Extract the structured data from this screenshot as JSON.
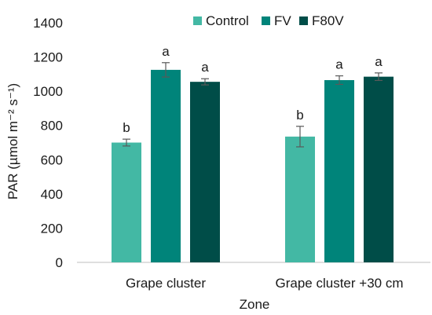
{
  "chart_data": {
    "type": "bar",
    "ylabel": "PAR (µmol m⁻² s⁻¹)",
    "xlabel": "Zone",
    "ylim": [
      0,
      1400
    ],
    "yticks": [
      0,
      200,
      400,
      600,
      800,
      1000,
      1200,
      1400
    ],
    "grid": false,
    "legend_position": "top-right",
    "categories": [
      "Grape cluster",
      "Grape cluster +30 cm"
    ],
    "series": [
      {
        "name": "Control",
        "color": "#43b8a4",
        "values": [
          700,
          735
        ],
        "errors": [
          20,
          60
        ],
        "letters": [
          "b",
          "b"
        ]
      },
      {
        "name": "FV",
        "color": "#00847a",
        "values": [
          1125,
          1065
        ],
        "errors": [
          42,
          25
        ],
        "letters": [
          "a",
          "a"
        ]
      },
      {
        "name": "F80V",
        "color": "#004d48",
        "values": [
          1055,
          1085
        ],
        "errors": [
          18,
          22
        ],
        "letters": [
          "a",
          "a"
        ]
      }
    ]
  }
}
